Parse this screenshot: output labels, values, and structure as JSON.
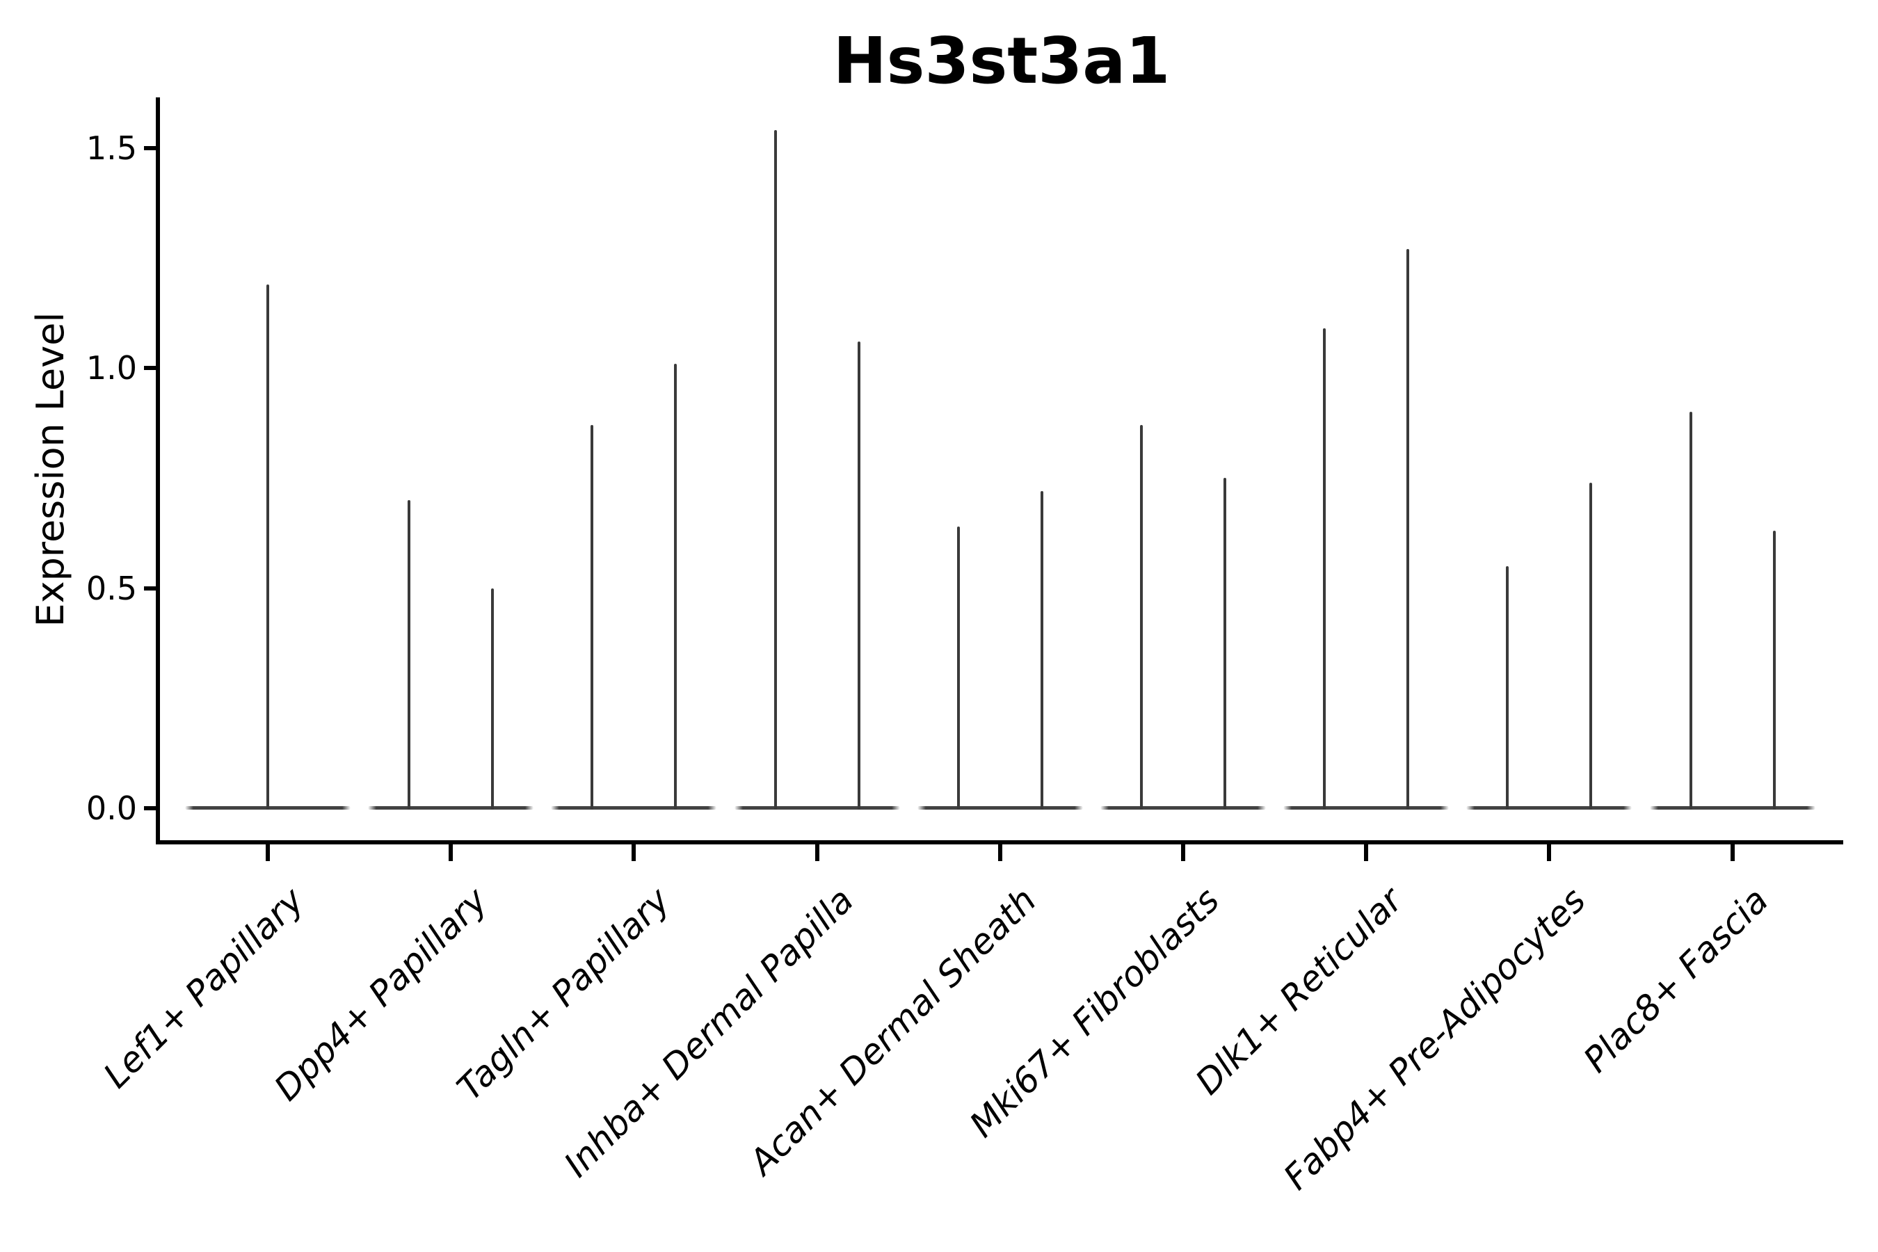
{
  "chart_data": {
    "type": "violin",
    "title": "Hs3st3a1",
    "ylabel": "Expression Level",
    "xlabel": "",
    "yticks": [
      {
        "label": "0.0",
        "value": 0.0
      },
      {
        "label": "0.5",
        "value": 0.5
      },
      {
        "label": "1.0",
        "value": 1.0
      },
      {
        "label": "1.5",
        "value": 1.5
      }
    ],
    "ylim": [
      -0.07,
      1.62
    ],
    "grid": false,
    "legend": "none",
    "categories": [
      {
        "label": "Lef1+ Papillary",
        "spikes": [
          {
            "pos": 0,
            "max": 1.19
          }
        ]
      },
      {
        "label": "Dpp4+ Papillary",
        "spikes": [
          {
            "pos": -1,
            "max": 0.7
          },
          {
            "pos": 1,
            "max": 0.5
          }
        ]
      },
      {
        "label": "Tagln+ Papillary",
        "spikes": [
          {
            "pos": -1,
            "max": 0.87
          },
          {
            "pos": 1,
            "max": 1.01
          }
        ]
      },
      {
        "label": "Inhba+ Dermal Papilla",
        "spikes": [
          {
            "pos": -1,
            "max": 1.54
          },
          {
            "pos": 1,
            "max": 1.06
          }
        ]
      },
      {
        "label": "Acan+ Dermal Sheath",
        "spikes": [
          {
            "pos": -1,
            "max": 0.64
          },
          {
            "pos": 1,
            "max": 0.72
          }
        ]
      },
      {
        "label": "Mki67+ Fibroblasts",
        "spikes": [
          {
            "pos": -1,
            "max": 0.87
          },
          {
            "pos": 1,
            "max": 0.75
          }
        ]
      },
      {
        "label": "Dlk1+ Reticular",
        "spikes": [
          {
            "pos": -1,
            "max": 1.09
          },
          {
            "pos": 1,
            "max": 1.27
          }
        ]
      },
      {
        "label": "Fabp4+ Pre-Adipocytes",
        "spikes": [
          {
            "pos": -1,
            "max": 0.55
          },
          {
            "pos": 1,
            "max": 0.74
          }
        ]
      },
      {
        "label": "Plac8+ Fascia",
        "spikes": [
          {
            "pos": -1,
            "max": 0.9
          },
          {
            "pos": 1,
            "max": 0.63
          }
        ]
      }
    ],
    "colors": {
      "violin_line": "#3a3a3a",
      "violin_base": "#424242",
      "axis": "#000000",
      "text": "#000000",
      "background": "#ffffff"
    }
  }
}
